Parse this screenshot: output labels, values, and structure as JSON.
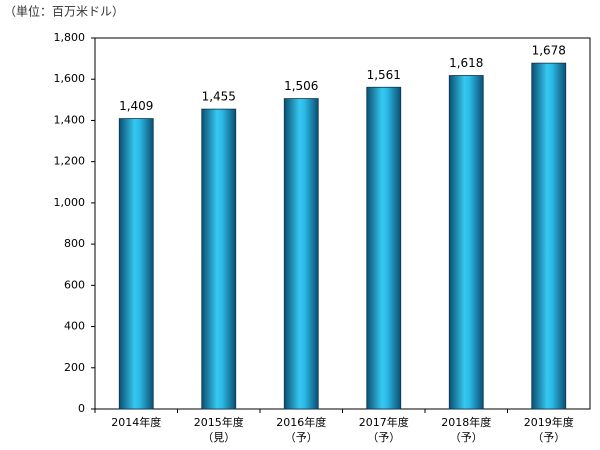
{
  "chart_data": {
    "type": "bar",
    "subtitle": "（単位：百万米ドル）",
    "categories": [
      "2014年度",
      "2015年度",
      "2016年度",
      "2017年度",
      "2018年度",
      "2019年度"
    ],
    "category_notes": [
      null,
      "（見）",
      "（予）",
      "（予）",
      "（予）",
      "（予）"
    ],
    "values": [
      1409,
      1455,
      1506,
      1561,
      1618,
      1678
    ],
    "value_labels": [
      "1,409",
      "1,455",
      "1,506",
      "1,561",
      "1,618",
      "1,678"
    ],
    "color": "#1ca8d8",
    "ylim": [
      0,
      1800
    ],
    "yticks": [
      0,
      200,
      400,
      600,
      800,
      {
        "value": 1000,
        "label": "1,000"
      },
      {
        "value": 1200,
        "label": "1,200"
      },
      {
        "value": 1400,
        "label": "1,400"
      },
      {
        "value": 1600,
        "label": "1,600"
      },
      {
        "value": 1800,
        "label": "1,800"
      }
    ],
    "grid": false
  }
}
